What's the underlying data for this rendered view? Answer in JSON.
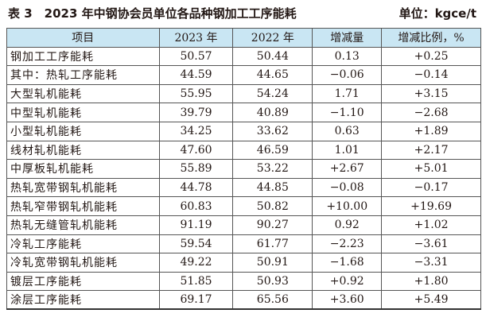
{
  "header": {
    "title": "表 3　2023 年中钢协会员单位各品种钢加工工序能耗",
    "unit": "单位：kgce/t"
  },
  "table": {
    "columns": [
      "项目",
      "2023 年",
      "2022 年",
      "增减量",
      "增减比例，%"
    ],
    "rows": [
      [
        "钢加工工序能耗",
        "50.57",
        "50.44",
        "0.13",
        "+0.25"
      ],
      [
        "其中：热轧工序能耗",
        "44.59",
        "44.65",
        "−0.06",
        "−0.14"
      ],
      [
        "大型轧机能耗",
        "55.95",
        "54.24",
        "1.71",
        "+3.15"
      ],
      [
        "中型轧机能耗",
        "39.79",
        "40.89",
        "−1.10",
        "−2.68"
      ],
      [
        "小型轧机能耗",
        "34.25",
        "33.62",
        "0.63",
        "+1.89"
      ],
      [
        "线材轧机能耗",
        "47.60",
        "46.59",
        "1.01",
        "+2.17"
      ],
      [
        "中厚板轧机能耗",
        "55.89",
        "53.22",
        "+2.67",
        "+5.01"
      ],
      [
        "热轧宽带钢轧机能耗",
        "44.78",
        "44.85",
        "−0.08",
        "−0.17"
      ],
      [
        "热轧窄带钢轧机能耗",
        "60.83",
        "50.82",
        "+10.00",
        "+19.69"
      ],
      [
        "热轧无缝管轧机能耗",
        "91.19",
        "90.27",
        "0.92",
        "+1.02"
      ],
      [
        "冷轧工序能耗",
        "59.54",
        "61.77",
        "−2.23",
        "−3.61"
      ],
      [
        "冷轧宽带钢轧机能耗",
        "49.22",
        "50.91",
        "−1.68",
        "−3.31"
      ],
      [
        "镀层工序能耗",
        "51.85",
        "50.93",
        "+0.92",
        "+1.80"
      ],
      [
        "涂层工序能耗",
        "69.17",
        "65.56",
        "+3.60",
        "+5.49"
      ]
    ]
  }
}
